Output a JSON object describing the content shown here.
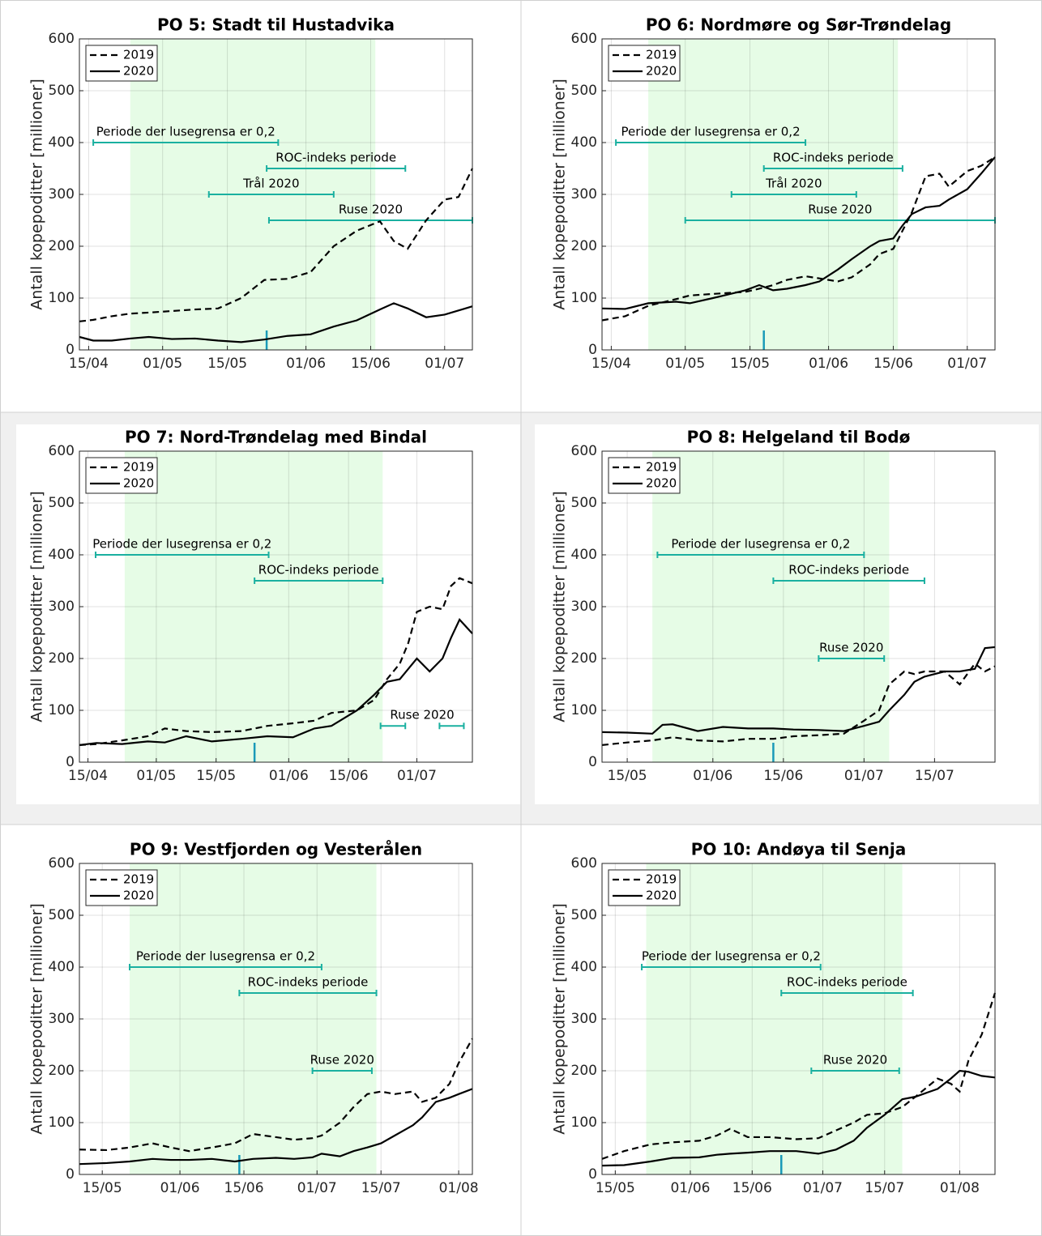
{
  "chart_data": [
    {
      "type": "line",
      "title": "PO 5: Stadt til Hustadvika",
      "ylabel": "Antall kopepoditter [millioner]",
      "x": [
        103,
        106,
        110,
        114,
        118,
        123,
        128,
        133,
        138,
        143,
        148,
        153,
        158,
        163,
        168,
        171,
        174,
        178,
        182,
        185,
        188
      ],
      "series": [
        {
          "name": "2019",
          "color": "#000000",
          "linestyle": "dashed",
          "values": [
            55,
            58,
            65,
            70,
            72,
            75,
            78,
            80,
            100,
            135,
            137,
            150,
            200,
            230,
            248,
            210,
            195,
            250,
            290,
            295,
            350
          ]
        },
        {
          "name": "2020",
          "color": "#000000",
          "linestyle": "solid",
          "values": [
            25,
            18,
            18,
            22,
            25,
            21,
            22,
            18,
            15,
            20,
            27,
            30,
            45,
            57,
            78,
            90,
            80,
            63,
            68,
            76,
            84
          ]
        }
      ],
      "xlim": [
        103,
        188
      ],
      "ylim": [
        0,
        600
      ],
      "xticks": [
        {
          "value": 105,
          "label": "15/04"
        },
        {
          "value": 121,
          "label": "01/05"
        },
        {
          "value": 135,
          "label": "15/05"
        },
        {
          "value": 152,
          "label": "01/06"
        },
        {
          "value": 166,
          "label": "15/06"
        },
        {
          "value": 182,
          "label": "01/07"
        }
      ],
      "yticks": [
        0,
        100,
        200,
        300,
        400,
        500,
        600
      ],
      "grid": true,
      "legend": "upper left",
      "shaded_x": [
        114,
        167
      ],
      "shade_color": "#e6fce6",
      "period_color": "#1ab0a0",
      "marker_color": "#1a9ab8",
      "periods": [
        {
          "label": "Periode der lusegrensa er 0,2",
          "y": 400,
          "ranges": [
            [
              106,
              146
            ]
          ]
        },
        {
          "label": "ROC-indeks periode",
          "y": 350,
          "ranges": [
            [
              143.5,
              173.5
            ]
          ]
        },
        {
          "label": "Trål 2020",
          "y": 300,
          "ranges": [
            [
              131,
              158
            ]
          ]
        },
        {
          "label": "Ruse 2020",
          "y": 250,
          "ranges": [
            [
              144,
              188
            ]
          ]
        }
      ],
      "marker_x": 143.5
    },
    {
      "type": "line",
      "title": "PO 6: Nordmøre og Sør-Trøndelag",
      "ylabel": "Antall kopepoditter [millioner]",
      "x": [
        103,
        108,
        113,
        119,
        122,
        127,
        134,
        137,
        140,
        143,
        147,
        150,
        154,
        157,
        161,
        163,
        166,
        168,
        170,
        173,
        176,
        178,
        182,
        185,
        188
      ],
      "series": [
        {
          "name": "2019",
          "color": "#000000",
          "linestyle": "dashed",
          "values": [
            57,
            65,
            85,
            98,
            105,
            108,
            112,
            118,
            125,
            135,
            142,
            138,
            132,
            140,
            165,
            185,
            195,
            230,
            265,
            335,
            340,
            315,
            345,
            355,
            372
          ]
        },
        {
          "name": "2020",
          "color": "#000000",
          "linestyle": "solid",
          "values": [
            80,
            79,
            90,
            93,
            90,
            100,
            115,
            125,
            115,
            118,
            125,
            132,
            155,
            175,
            200,
            210,
            215,
            240,
            262,
            275,
            278,
            290,
            310,
            340,
            372
          ]
        }
      ],
      "xlim": [
        103,
        188
      ],
      "ylim": [
        0,
        600
      ],
      "xticks": [
        {
          "value": 105,
          "label": "15/04"
        },
        {
          "value": 121,
          "label": "01/05"
        },
        {
          "value": 135,
          "label": "15/05"
        },
        {
          "value": 152,
          "label": "01/06"
        },
        {
          "value": 166,
          "label": "15/06"
        },
        {
          "value": 182,
          "label": "01/07"
        }
      ],
      "yticks": [
        0,
        100,
        200,
        300,
        400,
        500,
        600
      ],
      "grid": true,
      "legend": "upper left",
      "shaded_x": [
        113,
        167
      ],
      "shade_color": "#e6fce6",
      "period_color": "#1ab0a0",
      "marker_color": "#1a9ab8",
      "periods": [
        {
          "label": "Periode der lusegrensa er 0,2",
          "y": 400,
          "ranges": [
            [
              106,
              147
            ]
          ]
        },
        {
          "label": "ROC-indeks periode",
          "y": 350,
          "ranges": [
            [
              138,
              168
            ]
          ]
        },
        {
          "label": "Trål 2020",
          "y": 300,
          "ranges": [
            [
              131,
              158
            ]
          ]
        },
        {
          "label": "Ruse 2020",
          "y": 250,
          "ranges": [
            [
              121,
              188
            ]
          ]
        }
      ],
      "marker_x": 138
    },
    {
      "type": "line",
      "title": "PO 7: Nord-Trøndelag med Bindal",
      "ylabel": "Antall kopepoditter [millioner]",
      "x": [
        103,
        107,
        113,
        119,
        123,
        128,
        134,
        141,
        147,
        153,
        158,
        162,
        168,
        172,
        175,
        178,
        180,
        182,
        185,
        188,
        190,
        192,
        195
      ],
      "series": [
        {
          "name": "2019",
          "color": "#000000",
          "linestyle": "dashed",
          "values": [
            33,
            35,
            42,
            50,
            65,
            60,
            58,
            60,
            70,
            75,
            80,
            95,
            100,
            120,
            160,
            190,
            230,
            290,
            300,
            295,
            340,
            355,
            345
          ]
        },
        {
          "name": "2020",
          "color": "#000000",
          "linestyle": "solid",
          "values": [
            33,
            37,
            35,
            40,
            38,
            50,
            40,
            45,
            50,
            48,
            65,
            70,
            100,
            130,
            155,
            160,
            180,
            200,
            175,
            200,
            240,
            275,
            248
          ]
        }
      ],
      "xlim": [
        103,
        195
      ],
      "ylim": [
        0,
        600
      ],
      "xticks": [
        {
          "value": 105,
          "label": "15/04"
        },
        {
          "value": 121,
          "label": "01/05"
        },
        {
          "value": 135,
          "label": "15/05"
        },
        {
          "value": 152,
          "label": "01/06"
        },
        {
          "value": 166,
          "label": "15/06"
        },
        {
          "value": 182,
          "label": "01/07"
        }
      ],
      "yticks": [
        0,
        100,
        200,
        300,
        400,
        500,
        600
      ],
      "grid": true,
      "legend": "upper left",
      "shaded_x": [
        113.6,
        174
      ],
      "shade_color": "#e6fce6",
      "period_color": "#1ab0a0",
      "marker_color": "#1a9ab8",
      "periods": [
        {
          "label": "Periode der lusegrensa er 0,2",
          "y": 400,
          "ranges": [
            [
              106.8,
              147.3
            ]
          ]
        },
        {
          "label": "ROC-indeks periode",
          "y": 350,
          "ranges": [
            [
              144,
              174
            ]
          ]
        },
        {
          "label": "Ruse 2020",
          "y": 70,
          "ranges": [
            [
              173.5,
              179.3
            ],
            [
              187.3,
              193
            ]
          ]
        }
      ],
      "marker_x": 144
    },
    {
      "type": "line",
      "title": "PO 8: Helgeland til Bodø",
      "ylabel": "Antall kopepoditter [millioner]",
      "x": [
        130,
        135,
        140,
        142,
        144,
        149,
        154,
        159,
        164,
        168,
        173,
        178,
        182,
        185,
        187,
        190,
        192,
        194,
        198,
        201,
        204,
        206,
        208
      ],
      "series": [
        {
          "name": "2019",
          "color": "#000000",
          "linestyle": "dashed",
          "values": [
            33,
            38,
            42,
            45,
            48,
            42,
            40,
            45,
            45,
            50,
            52,
            55,
            80,
            100,
            150,
            175,
            170,
            175,
            175,
            150,
            190,
            175,
            185
          ]
        },
        {
          "name": "2020",
          "color": "#000000",
          "linestyle": "solid",
          "values": [
            58,
            57,
            55,
            72,
            73,
            60,
            68,
            65,
            65,
            63,
            62,
            60,
            70,
            78,
            100,
            130,
            155,
            165,
            175,
            175,
            180,
            220,
            222
          ]
        }
      ],
      "xlim": [
        130,
        208
      ],
      "ylim": [
        0,
        600
      ],
      "xticks": [
        {
          "value": 135,
          "label": "15/05"
        },
        {
          "value": 152,
          "label": "01/06"
        },
        {
          "value": 166,
          "label": "15/06"
        },
        {
          "value": 182,
          "label": "01/07"
        },
        {
          "value": 196,
          "label": "15/07"
        }
      ],
      "yticks": [
        0,
        100,
        200,
        300,
        400,
        500,
        600
      ],
      "grid": true,
      "legend": "upper left",
      "shaded_x": [
        140,
        187
      ],
      "shade_color": "#e6fce6",
      "period_color": "#1ab0a0",
      "marker_color": "#1a9ab8",
      "periods": [
        {
          "label": "Periode der lusegrensa er 0,2",
          "y": 400,
          "ranges": [
            [
              141,
              182
            ]
          ]
        },
        {
          "label": "ROC-indeks periode",
          "y": 350,
          "ranges": [
            [
              164,
              194
            ]
          ]
        },
        {
          "label": "Ruse 2020",
          "y": 200,
          "ranges": [
            [
              173,
              186
            ]
          ]
        }
      ],
      "marker_x": 164
    },
    {
      "type": "line",
      "title": "PO 9: Vestfjorden og Vesterålen",
      "ylabel": "Antall kopepoditter [millioner]",
      "x": [
        130,
        136,
        141,
        146,
        150,
        154,
        159,
        164,
        168,
        173,
        177,
        181,
        183,
        187,
        190,
        193,
        196,
        199,
        203,
        205,
        208,
        211,
        213,
        216
      ],
      "series": [
        {
          "name": "2019",
          "color": "#000000",
          "linestyle": "dashed",
          "values": [
            48,
            47,
            52,
            60,
            52,
            45,
            52,
            60,
            78,
            72,
            67,
            70,
            75,
            100,
            130,
            155,
            160,
            155,
            160,
            140,
            148,
            175,
            215,
            262
          ]
        },
        {
          "name": "2020",
          "color": "#000000",
          "linestyle": "solid",
          "values": [
            20,
            22,
            25,
            30,
            28,
            28,
            30,
            25,
            30,
            32,
            30,
            33,
            40,
            35,
            45,
            52,
            60,
            75,
            95,
            110,
            140,
            148,
            155,
            165
          ]
        }
      ],
      "xlim": [
        130,
        216
      ],
      "ylim": [
        0,
        600
      ],
      "xticks": [
        {
          "value": 135,
          "label": "15/05"
        },
        {
          "value": 152,
          "label": "01/06"
        },
        {
          "value": 166,
          "label": "15/06"
        },
        {
          "value": 182,
          "label": "01/07"
        },
        {
          "value": 196,
          "label": "15/07"
        },
        {
          "value": 213,
          "label": "01/08"
        }
      ],
      "yticks": [
        0,
        100,
        200,
        300,
        400,
        500,
        600
      ],
      "grid": true,
      "legend": "upper left",
      "shaded_x": [
        141,
        195
      ],
      "shade_color": "#e6fce6",
      "period_color": "#1ab0a0",
      "marker_color": "#1a9ab8",
      "periods": [
        {
          "label": "Periode der lusegrensa er 0,2",
          "y": 400,
          "ranges": [
            [
              141,
              183
            ]
          ]
        },
        {
          "label": "ROC-indeks periode",
          "y": 350,
          "ranges": [
            [
              165,
              195
            ]
          ]
        },
        {
          "label": "Ruse 2020",
          "y": 200,
          "ranges": [
            [
              181,
              194
            ]
          ]
        }
      ],
      "marker_x": 165
    },
    {
      "type": "line",
      "title": "PO 10: Andøya til Senja",
      "ylabel": "Antall kopepoditter [millioner]",
      "x": [
        132,
        137,
        143,
        148,
        154,
        158,
        161,
        165,
        170,
        176,
        181,
        185,
        189,
        192,
        196,
        200,
        203,
        208,
        211,
        213,
        215,
        218,
        221
      ],
      "series": [
        {
          "name": "2019",
          "color": "#000000",
          "linestyle": "dashed",
          "values": [
            30,
            45,
            58,
            62,
            65,
            75,
            88,
            72,
            72,
            68,
            70,
            85,
            100,
            115,
            118,
            130,
            150,
            185,
            175,
            160,
            220,
            270,
            350
          ]
        },
        {
          "name": "2020",
          "color": "#000000",
          "linestyle": "solid",
          "values": [
            17,
            18,
            25,
            32,
            33,
            38,
            40,
            42,
            45,
            45,
            40,
            48,
            65,
            90,
            115,
            145,
            150,
            165,
            185,
            200,
            198,
            190,
            187
          ]
        }
      ],
      "xlim": [
        132,
        221
      ],
      "ylim": [
        0,
        600
      ],
      "xticks": [
        {
          "value": 135,
          "label": "15/05"
        },
        {
          "value": 152,
          "label": "01/06"
        },
        {
          "value": 166,
          "label": "15/06"
        },
        {
          "value": 182,
          "label": "01/07"
        },
        {
          "value": 196,
          "label": "15/07"
        },
        {
          "value": 213,
          "label": "01/08"
        }
      ],
      "yticks": [
        0,
        100,
        200,
        300,
        400,
        500,
        600
      ],
      "grid": true,
      "legend": "upper left",
      "shaded_x": [
        142,
        200
      ],
      "shade_color": "#e6fce6",
      "period_color": "#1ab0a0",
      "marker_color": "#1a9ab8",
      "periods": [
        {
          "label": "Periode der lusegrensa er 0,2",
          "y": 400,
          "ranges": [
            [
              141,
              181.5
            ]
          ]
        },
        {
          "label": "ROC-indeks periode",
          "y": 350,
          "ranges": [
            [
              172.6,
              202.4
            ]
          ]
        },
        {
          "label": "Ruse 2020",
          "y": 200,
          "ranges": [
            [
              179.4,
              199.3
            ]
          ]
        }
      ],
      "marker_x": 172.6
    }
  ]
}
